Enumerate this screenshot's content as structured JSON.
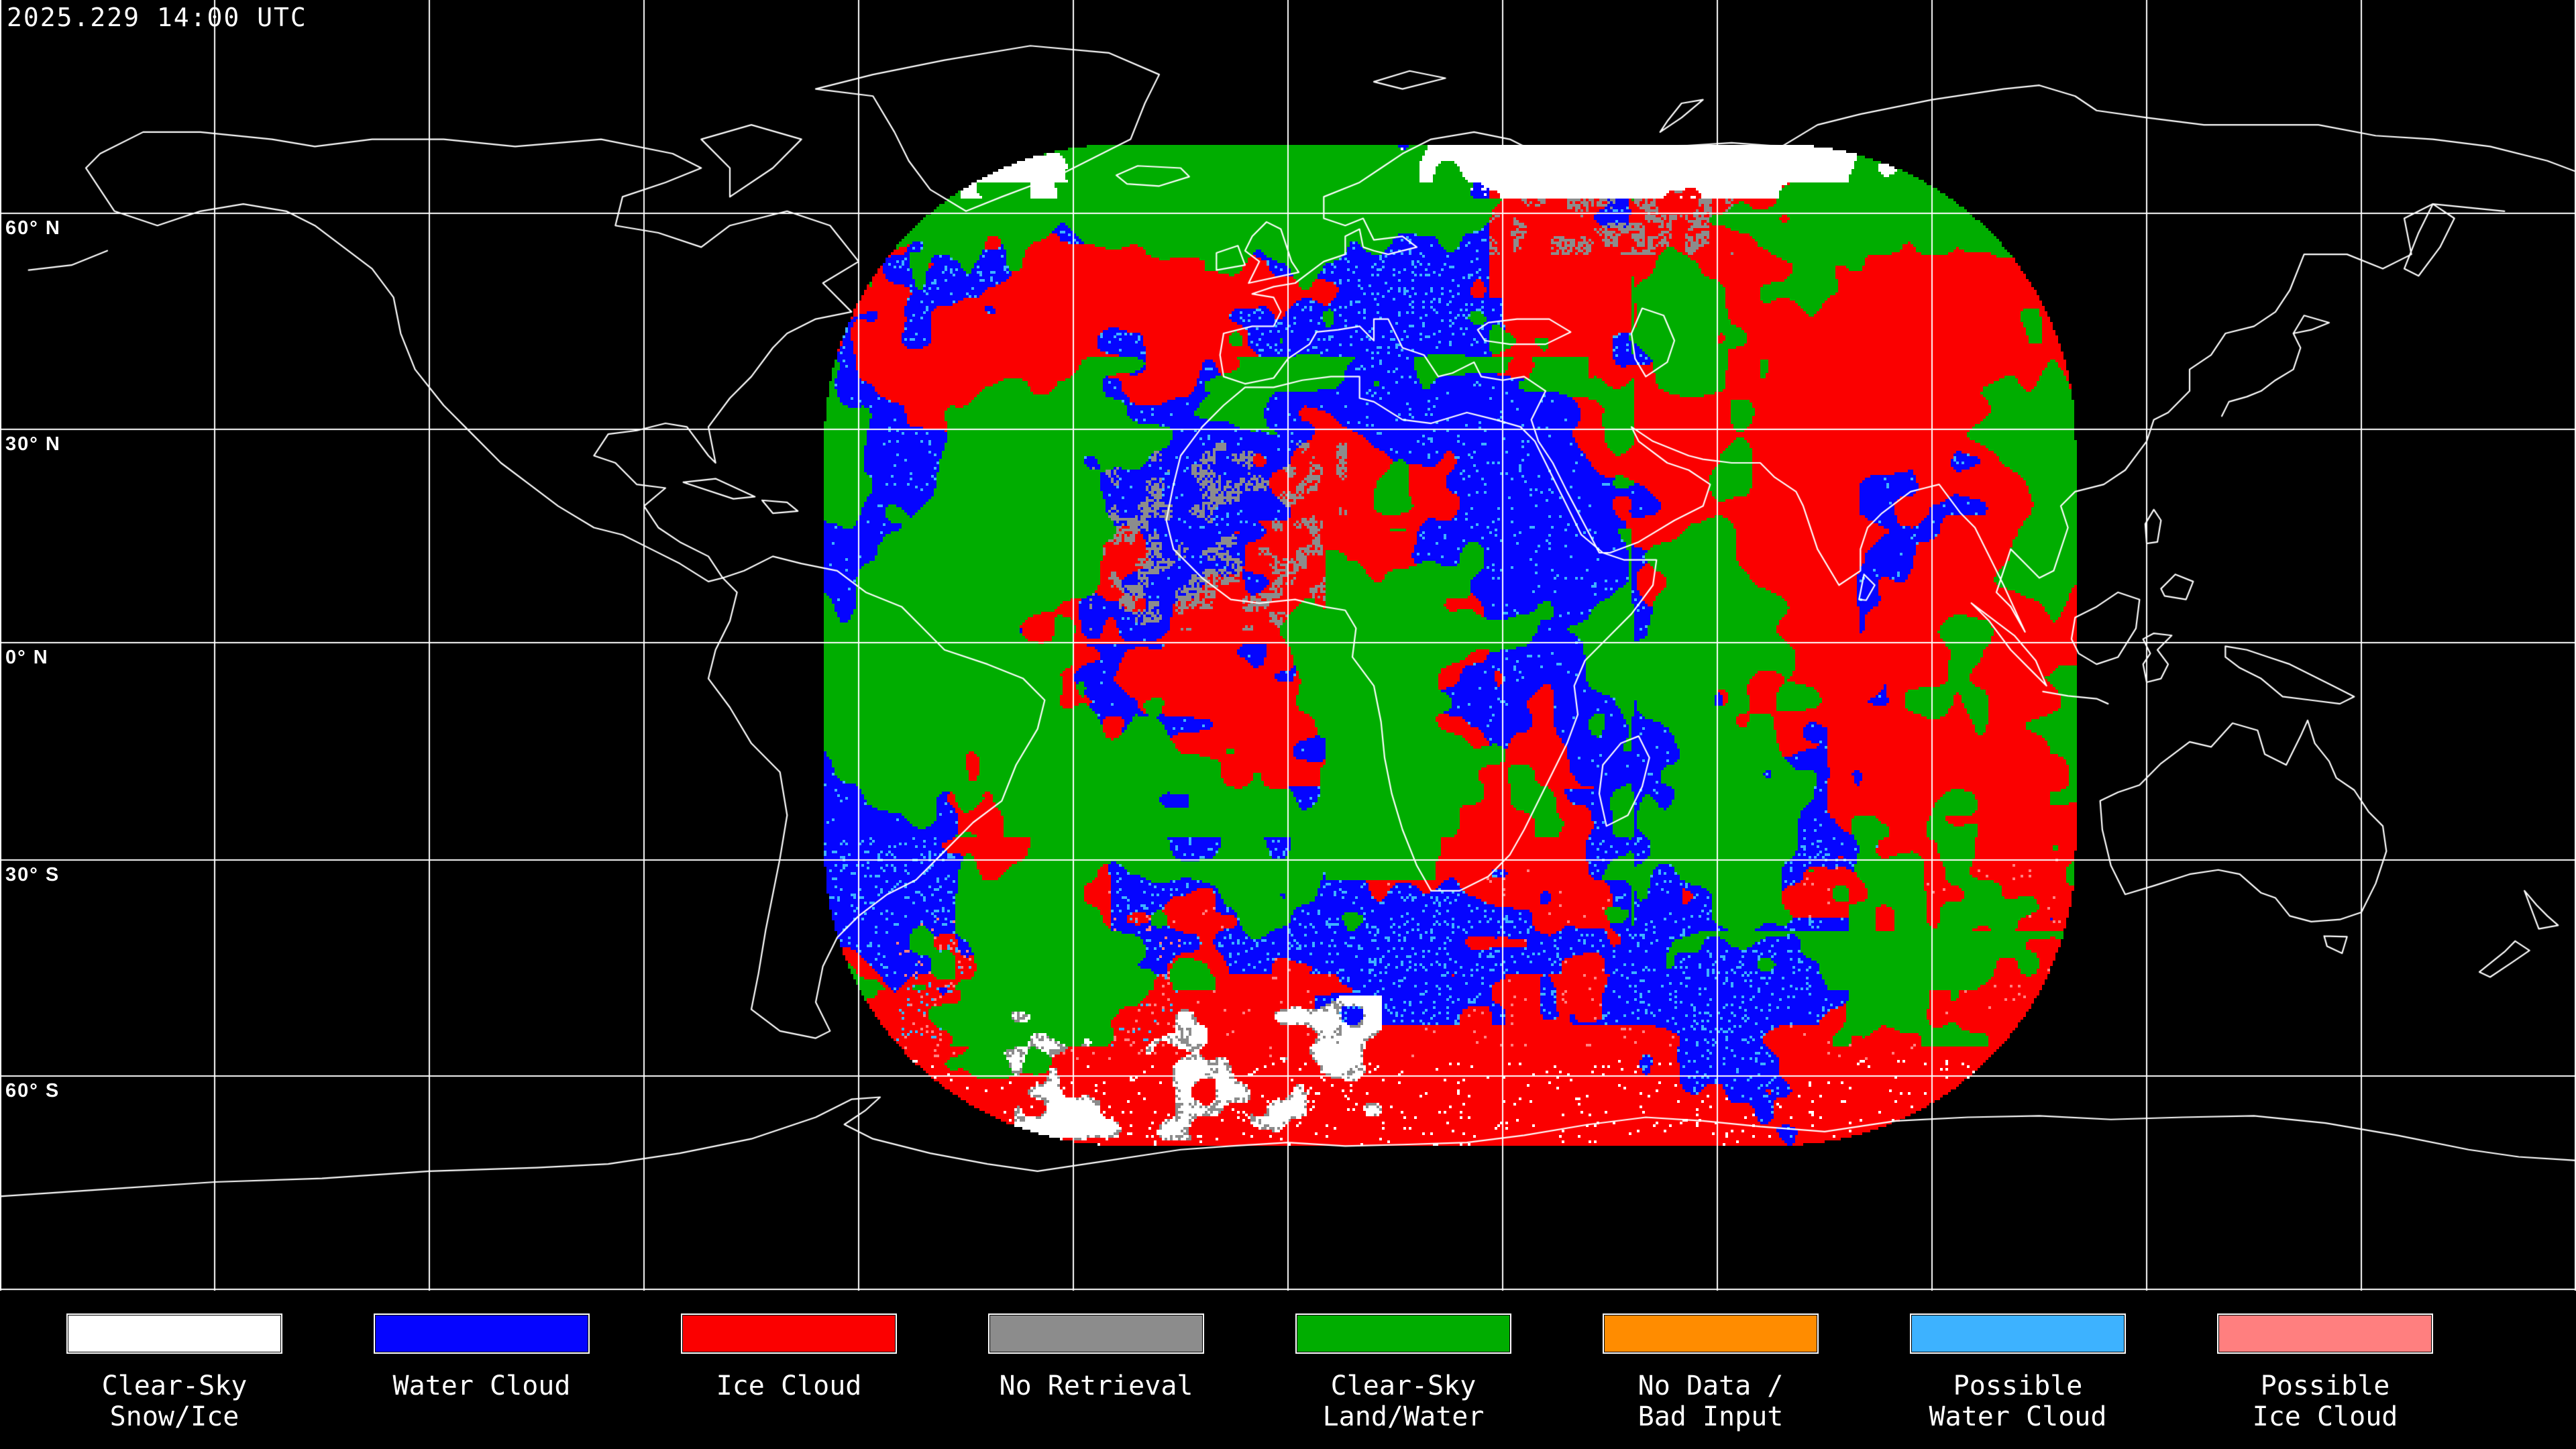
{
  "header": {
    "timestamp": "2025.229 14:00 UTC"
  },
  "map": {
    "projection": "equirectangular",
    "grid_interval_degrees": 30,
    "background_color": "#000000",
    "grid_color": "#ffffff",
    "coastline_color": "#ffffff",
    "latitude_labels": [
      {
        "text": "60° N"
      },
      {
        "text": "30° N"
      },
      {
        "text": "0° N"
      },
      {
        "text": "30° S"
      },
      {
        "text": "60° S"
      }
    ]
  },
  "legend": {
    "items": [
      {
        "label": "Clear-Sky\nSnow/Ice",
        "color": "#ffffff"
      },
      {
        "label": "Water Cloud",
        "color": "#0505ff"
      },
      {
        "label": "Ice Cloud",
        "color": "#fb0000"
      },
      {
        "label": "No Retrieval",
        "color": "#8c8c8c"
      },
      {
        "label": "Clear-Sky\nLand/Water",
        "color": "#00ad00"
      },
      {
        "label": "No Data /\nBad Input",
        "color": "#ff8c00"
      },
      {
        "label": "Possible\nWater Cloud",
        "color": "#3db2ff"
      },
      {
        "label": "Possible\nIce Cloud",
        "color": "#ff7f7f"
      }
    ]
  }
}
